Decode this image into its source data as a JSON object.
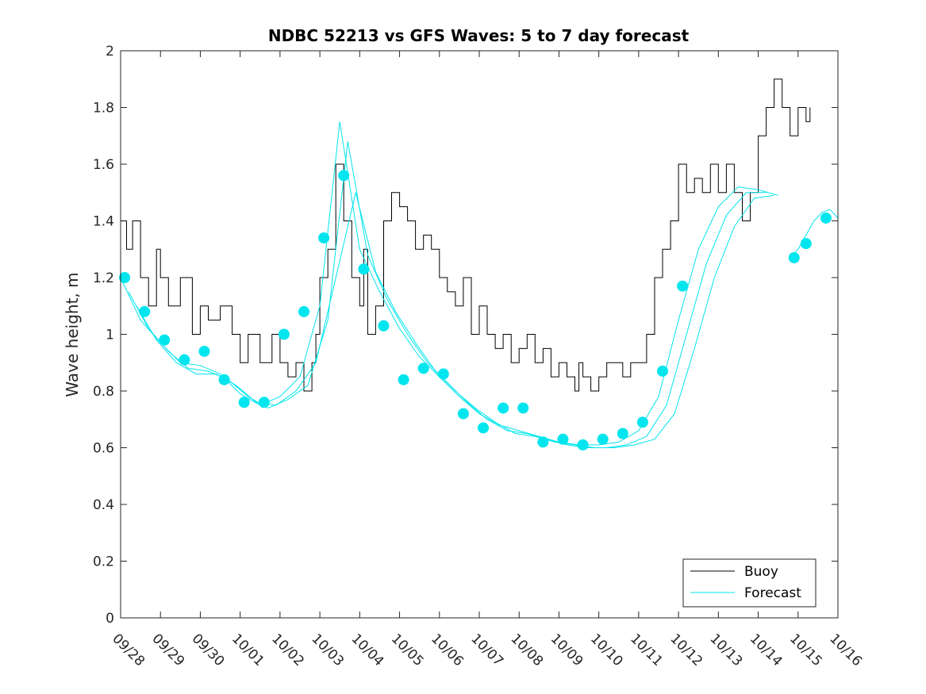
{
  "chart_data": {
    "type": "line",
    "title": "NDBC 52213 vs GFS Waves: 5 to 7 day forecast",
    "xlabel": "",
    "ylabel": "Wave height, m",
    "xlim": [
      0,
      18
    ],
    "ylim": [
      0,
      2
    ],
    "x_units": "days since 09/28",
    "x_tick_labels": [
      "09/28",
      "09/29",
      "09/30",
      "10/01",
      "10/02",
      "10/03",
      "10/04",
      "10/05",
      "10/06",
      "10/07",
      "10/08",
      "10/09",
      "10/10",
      "10/11",
      "10/12",
      "10/13",
      "10/14",
      "10/15",
      "10/16"
    ],
    "y_ticks": [
      0,
      0.2,
      0.4,
      0.6,
      0.8,
      1,
      1.2,
      1.4,
      1.6,
      1.8,
      2
    ],
    "y_tick_labels": [
      "0",
      "0.2",
      "0.4",
      "0.6",
      "0.8",
      "1",
      "1.2",
      "1.4",
      "1.6",
      "1.8",
      "2"
    ],
    "legend": {
      "position": "bottom-right",
      "entries": [
        {
          "label": "Buoy",
          "color": "#000000"
        },
        {
          "label": "Forecast",
          "color": "#00e5ee"
        }
      ]
    },
    "colors": {
      "buoy": "#000000",
      "forecast": "#00e5ee"
    },
    "buoy": {
      "x": [
        0,
        0.15,
        0.3,
        0.5,
        0.7,
        0.9,
        1.0,
        1.2,
        1.5,
        1.8,
        2.0,
        2.2,
        2.5,
        2.8,
        3.0,
        3.2,
        3.5,
        3.8,
        4.0,
        4.2,
        4.4,
        4.6,
        4.8,
        4.9,
        5.0,
        5.2,
        5.4,
        5.6,
        5.8,
        6.0,
        6.1,
        6.2,
        6.4,
        6.6,
        6.8,
        7.0,
        7.2,
        7.4,
        7.6,
        7.8,
        8.0,
        8.2,
        8.4,
        8.6,
        8.8,
        9.0,
        9.2,
        9.4,
        9.6,
        9.8,
        10.0,
        10.2,
        10.4,
        10.6,
        10.8,
        11.0,
        11.2,
        11.4,
        11.5,
        11.6,
        11.8,
        12.0,
        12.2,
        12.4,
        12.6,
        12.8,
        13.0,
        13.2,
        13.4,
        13.6,
        13.8,
        14.0,
        14.2,
        14.4,
        14.6,
        14.8,
        15.0,
        15.2,
        15.4,
        15.6,
        15.8,
        16.0,
        16.2,
        16.4,
        16.6,
        16.8,
        17.0,
        17.2,
        17.3
      ],
      "y": [
        1.4,
        1.3,
        1.4,
        1.2,
        1.1,
        1.3,
        1.2,
        1.1,
        1.2,
        1.0,
        1.1,
        1.05,
        1.1,
        1.0,
        0.9,
        1.0,
        0.9,
        1.0,
        0.9,
        0.85,
        0.9,
        0.8,
        0.9,
        1.0,
        1.2,
        1.3,
        1.6,
        1.4,
        1.2,
        1.1,
        1.3,
        1.0,
        1.1,
        1.4,
        1.5,
        1.45,
        1.4,
        1.3,
        1.35,
        1.3,
        1.2,
        1.15,
        1.1,
        1.2,
        1.0,
        1.1,
        1.0,
        0.95,
        1.0,
        0.9,
        0.95,
        1.0,
        0.9,
        0.95,
        0.85,
        0.9,
        0.85,
        0.8,
        0.9,
        0.85,
        0.8,
        0.85,
        0.9,
        0.9,
        0.85,
        0.9,
        0.9,
        1.0,
        1.2,
        1.3,
        1.4,
        1.6,
        1.5,
        1.55,
        1.5,
        1.6,
        1.5,
        1.6,
        1.5,
        1.4,
        1.5,
        1.7,
        1.8,
        1.9,
        1.8,
        1.7,
        1.8,
        1.75,
        1.8
      ]
    },
    "forecast_points": {
      "x": [
        0.1,
        0.6,
        1.1,
        1.6,
        2.1,
        2.6,
        3.1,
        3.6,
        4.1,
        4.6,
        5.1,
        5.6,
        6.1,
        6.6,
        7.1,
        7.6,
        8.1,
        8.6,
        9.1,
        9.6,
        10.1,
        10.6,
        11.1,
        11.6,
        12.1,
        12.6,
        13.1,
        13.6,
        14.1,
        14.6,
        15.1,
        15.6,
        16.1,
        16.9,
        17.2,
        17.7
      ],
      "y": [
        1.2,
        1.08,
        0.98,
        0.91,
        0.94,
        0.84,
        0.76,
        0.76,
        1.0,
        1.08,
        1.34,
        1.56,
        1.23,
        1.03,
        0.84,
        0.88,
        0.86,
        0.72,
        0.67,
        0.74,
        0.74,
        0.62,
        0.63,
        0.61,
        0.63,
        0.65,
        0.69,
        0.87,
        1.17,
        null,
        null,
        null,
        null,
        1.27,
        1.32,
        1.41
      ]
    },
    "forecast_series": [
      {
        "x": [
          0,
          0.5,
          1.0,
          1.5,
          2.0,
          2.5,
          3.0,
          3.5,
          4.0,
          4.5,
          5.0,
          5.5,
          6.0,
          6.5,
          7.0,
          7.5,
          8.0,
          8.5,
          9.0,
          9.5,
          10.0,
          10.5,
          11.0,
          11.5,
          12.0,
          12.5,
          13.0,
          13.5,
          14.0,
          14.5,
          15.0,
          15.5,
          16.0,
          16.5
        ],
        "y": [
          1.2,
          1.05,
          0.97,
          0.9,
          0.89,
          0.86,
          0.79,
          0.75,
          0.78,
          0.85,
          1.1,
          1.75,
          1.3,
          1.15,
          1.02,
          0.92,
          0.85,
          0.78,
          0.72,
          0.68,
          0.66,
          0.64,
          0.62,
          0.61,
          0.61,
          0.62,
          0.66,
          0.78,
          1.05,
          1.3,
          1.45,
          1.52,
          1.51,
          1.49
        ]
      },
      {
        "x": [
          0.2,
          0.7,
          1.2,
          1.7,
          2.2,
          2.7,
          3.2,
          3.7,
          4.2,
          4.7,
          5.2,
          5.7,
          6.2,
          6.7,
          7.2,
          7.7,
          8.2,
          8.7,
          9.2,
          9.7,
          10.2,
          10.7,
          11.2,
          11.7,
          12.2,
          12.7,
          13.2,
          13.7,
          14.2,
          14.7,
          15.2,
          15.7,
          16.2
        ],
        "y": [
          1.15,
          1.02,
          0.94,
          0.88,
          0.87,
          0.84,
          0.78,
          0.74,
          0.77,
          0.82,
          1.05,
          1.68,
          1.28,
          1.12,
          1.0,
          0.9,
          0.83,
          0.76,
          0.7,
          0.66,
          0.65,
          0.63,
          0.61,
          0.6,
          0.6,
          0.61,
          0.64,
          0.75,
          1.0,
          1.25,
          1.42,
          1.5,
          1.5
        ]
      },
      {
        "x": [
          0.4,
          0.9,
          1.4,
          1.9,
          2.4,
          2.9,
          3.4,
          3.9,
          4.4,
          4.9,
          5.4,
          5.9,
          6.4,
          6.9,
          7.4,
          7.9,
          8.4,
          8.9,
          9.4,
          9.9,
          10.4,
          10.9,
          11.4,
          11.9,
          12.4,
          12.9,
          13.4,
          13.9,
          14.4,
          14.9,
          15.4,
          15.9,
          16.4
        ],
        "y": [
          1.1,
          0.98,
          0.9,
          0.86,
          0.86,
          0.82,
          0.76,
          0.75,
          0.8,
          0.9,
          1.2,
          1.5,
          1.22,
          1.08,
          0.97,
          0.87,
          0.8,
          0.74,
          0.69,
          0.65,
          0.64,
          0.62,
          0.61,
          0.6,
          0.6,
          0.61,
          0.63,
          0.72,
          0.95,
          1.2,
          1.38,
          1.48,
          1.49
        ]
      },
      {
        "x": [
          16.8,
          17.0,
          17.2,
          17.4,
          17.6,
          17.8,
          18.0
        ],
        "y": [
          1.27,
          1.3,
          1.35,
          1.4,
          1.43,
          1.44,
          1.41
        ]
      }
    ]
  }
}
